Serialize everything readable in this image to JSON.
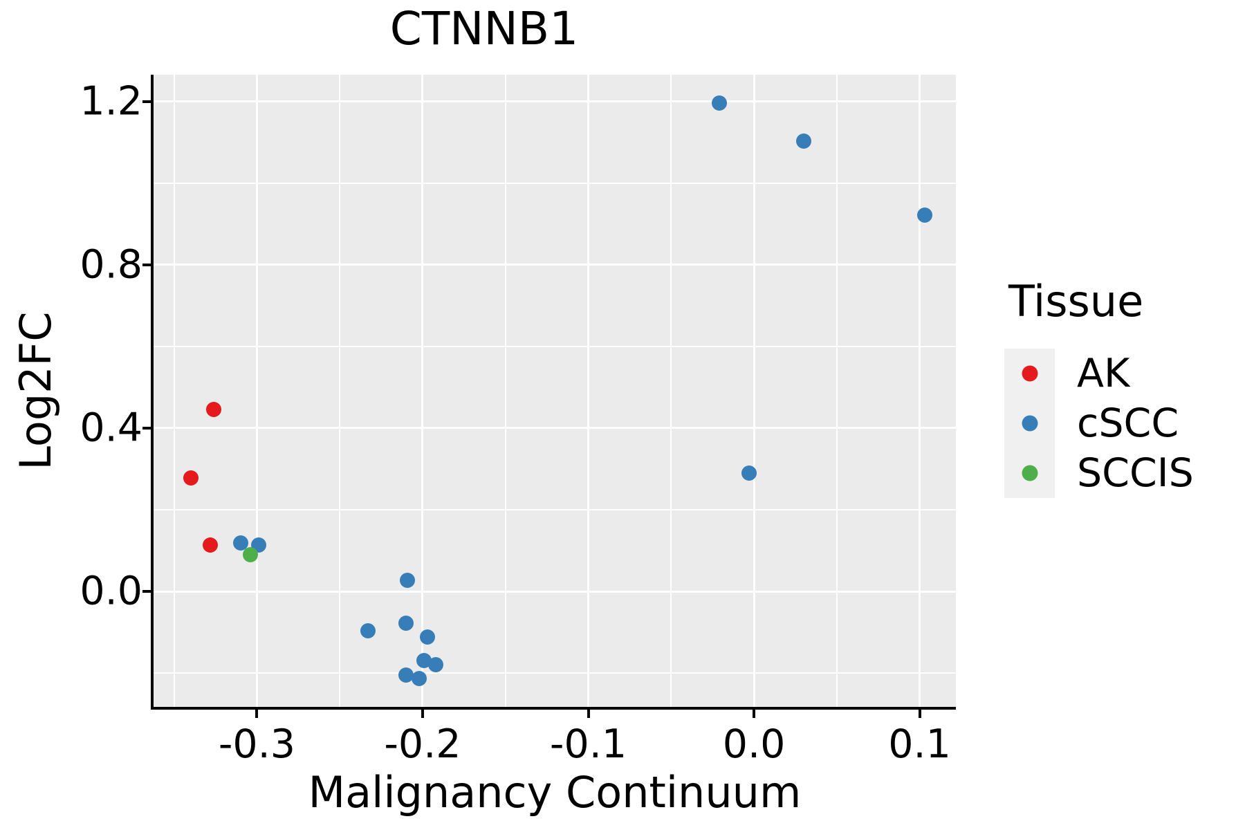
{
  "title": "CTNNB1",
  "chart_data": {
    "type": "scatter",
    "title": "CTNNB1",
    "xlabel": "Malignancy Continuum",
    "ylabel": "Log2FC",
    "xlim": [
      -0.3624,
      0.1219
    ],
    "ylim": [
      -0.283,
      1.266
    ],
    "grid": "on",
    "panel_bg": "#EBEBEB",
    "grid_color": "#FFFFFF",
    "x_ticks": [
      {
        "value": -0.3,
        "label": "-0.3"
      },
      {
        "value": -0.2,
        "label": "-0.2"
      },
      {
        "value": -0.1,
        "label": "-0.1"
      },
      {
        "value": 0.0,
        "label": "0.0"
      },
      {
        "value": 0.1,
        "label": "0.1"
      }
    ],
    "y_ticks": [
      {
        "value": 0.0,
        "label": "0.0"
      },
      {
        "value": 0.4,
        "label": "0.4"
      },
      {
        "value": 0.8,
        "label": "0.8"
      },
      {
        "value": 1.2,
        "label": "1.2"
      }
    ],
    "x_minor": [
      -0.35,
      -0.25,
      -0.15,
      -0.05,
      0.05
    ],
    "y_minor": [
      -0.2,
      0.2,
      0.6,
      1.0
    ],
    "legend": {
      "title": "Tissue",
      "position": "right"
    },
    "series": [
      {
        "name": "AK",
        "color": "#E41A1C",
        "points": [
          [
            -0.326,
            0.446
          ],
          [
            -0.34,
            0.278
          ],
          [
            -0.328,
            0.114
          ]
        ]
      },
      {
        "name": "cSCC",
        "color": "#377EB8",
        "points": [
          [
            -0.31,
            0.119
          ],
          [
            -0.299,
            0.114
          ],
          [
            -0.209,
            0.027
          ],
          [
            -0.233,
            -0.097
          ],
          [
            -0.21,
            -0.078
          ],
          [
            -0.197,
            -0.112
          ],
          [
            -0.199,
            -0.169
          ],
          [
            -0.192,
            -0.18
          ],
          [
            -0.21,
            -0.205
          ],
          [
            -0.202,
            -0.214
          ],
          [
            -0.003,
            0.29
          ],
          [
            -0.021,
            1.197
          ],
          [
            0.03,
            1.103
          ],
          [
            0.103,
            0.922
          ]
        ]
      },
      {
        "name": "SCCIS",
        "color": "#4DAF4A",
        "points": [
          [
            -0.304,
            0.09
          ]
        ]
      }
    ]
  }
}
